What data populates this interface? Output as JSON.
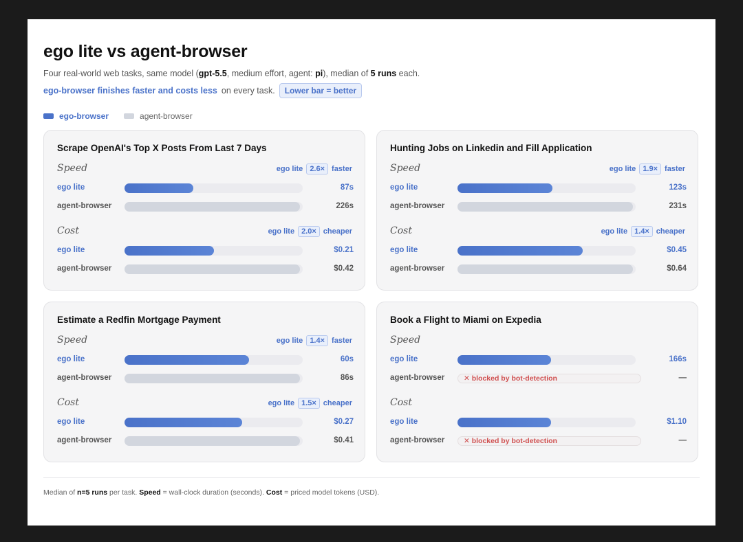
{
  "header": {
    "title": "ego lite vs agent-browser",
    "subtitle": {
      "p1": "Four real-world web tasks, same model (",
      "model": "gpt-5.5",
      "p2": ", medium effort, agent: ",
      "agent": "pi",
      "p3": "), median of ",
      "runs": "5 runs",
      "p4": " each."
    },
    "tagline": {
      "highlight": "ego-browser finishes faster and costs less",
      "rest": "on every task.",
      "pill": "Lower bar = better"
    }
  },
  "legend": {
    "ego": "ego-browser",
    "agent": "agent-browser"
  },
  "labels": {
    "speed": "Speed",
    "cost": "Cost",
    "ego_short": "ego lite",
    "ego_row": "ego lite",
    "agent_row": "agent-browser",
    "faster": "faster",
    "cheaper": "cheaper"
  },
  "chart_data": [
    {
      "type": "bar",
      "title": "Scrape OpenAI's Top X Posts From Last 7 Days",
      "speed": {
        "ratio": "2.6×",
        "series": [
          {
            "name": "ego lite",
            "value": 87,
            "label": "87s"
          },
          {
            "name": "agent-browser",
            "value": 226,
            "label": "226s",
            "blocked": false
          }
        ],
        "max": 226
      },
      "cost": {
        "ratio": "2.0×",
        "series": [
          {
            "name": "ego lite",
            "value": 0.21,
            "label": "$0.21"
          },
          {
            "name": "agent-browser",
            "value": 0.42,
            "label": "$0.42",
            "blocked": false
          }
        ],
        "max": 0.42
      }
    },
    {
      "type": "bar",
      "title": "Hunting Jobs on Linkedin and Fill Application",
      "speed": {
        "ratio": "1.9×",
        "series": [
          {
            "name": "ego lite",
            "value": 123,
            "label": "123s"
          },
          {
            "name": "agent-browser",
            "value": 231,
            "label": "231s",
            "blocked": false
          }
        ],
        "max": 231
      },
      "cost": {
        "ratio": "1.4×",
        "series": [
          {
            "name": "ego lite",
            "value": 0.45,
            "label": "$0.45"
          },
          {
            "name": "agent-browser",
            "value": 0.64,
            "label": "$0.64",
            "blocked": false
          }
        ],
        "max": 0.64
      }
    },
    {
      "type": "bar",
      "title": "Estimate a Redfin Mortgage Payment",
      "speed": {
        "ratio": "1.4×",
        "series": [
          {
            "name": "ego lite",
            "value": 60,
            "label": "60s"
          },
          {
            "name": "agent-browser",
            "value": 86,
            "label": "86s",
            "blocked": false
          }
        ],
        "max": 86
      },
      "cost": {
        "ratio": "1.5×",
        "series": [
          {
            "name": "ego lite",
            "value": 0.27,
            "label": "$0.27"
          },
          {
            "name": "agent-browser",
            "value": 0.41,
            "label": "$0.41",
            "blocked": false
          }
        ],
        "max": 0.41
      }
    },
    {
      "type": "bar",
      "title": "Book a Flight to Miami on Expedia",
      "speed": {
        "ratio": "",
        "series": [
          {
            "name": "ego lite",
            "value": 166,
            "label": "166s"
          },
          {
            "name": "agent-browser",
            "value": null,
            "label": "—",
            "blocked": true,
            "blocked_text": "✕ blocked by bot-detection"
          }
        ],
        "max": 316
      },
      "cost": {
        "ratio": "",
        "series": [
          {
            "name": "ego lite",
            "value": 1.1,
            "label": "$1.10"
          },
          {
            "name": "agent-browser",
            "value": null,
            "label": "—",
            "blocked": true,
            "blocked_text": "✕ blocked by bot-detection"
          }
        ],
        "max": 2.09
      }
    }
  ],
  "footnote": {
    "p1": "Median of ",
    "runs": "n=5 runs",
    "p2": " per task. ",
    "speed": "Speed",
    "p3": " = wall-clock duration (seconds). ",
    "cost": "Cost",
    "p4": " = priced model tokens (USD)."
  },
  "colors": {
    "ego": "#4a72c9",
    "agent": "#d2d6de",
    "blocked": "#d05050"
  }
}
